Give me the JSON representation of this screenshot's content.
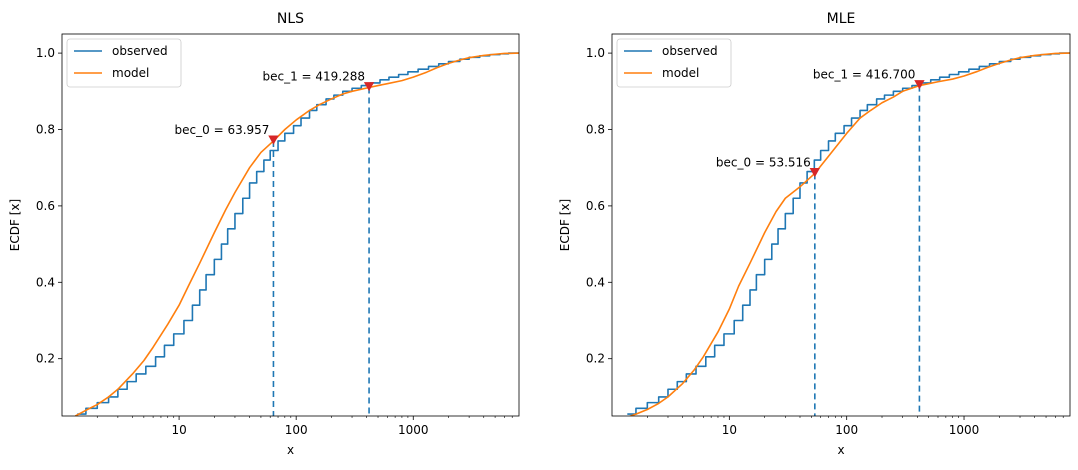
{
  "chart_data": [
    {
      "type": "line",
      "title": "NLS",
      "xlabel": "x",
      "ylabel": "ECDF [x]",
      "xscale": "log",
      "xlim": [
        1.0,
        8000
      ],
      "ylim": [
        0.05,
        1.05
      ],
      "xticks": [
        {
          "value": 10,
          "label": "10"
        },
        {
          "value": 100,
          "label": "100"
        },
        {
          "value": 1000,
          "label": "1000"
        }
      ],
      "yticks": [
        {
          "value": 0.2,
          "label": "0.2"
        },
        {
          "value": 0.4,
          "label": "0.4"
        },
        {
          "value": 0.6,
          "label": "0.6"
        },
        {
          "value": 0.8,
          "label": "0.8"
        },
        {
          "value": 1.0,
          "label": "1.0"
        }
      ],
      "legend": {
        "position": "top-left",
        "entries": [
          "observed",
          "model"
        ]
      },
      "series": [
        {
          "name": "observed",
          "kind": "step",
          "color": "#1f77b4",
          "x": [
            1.35,
            1.6,
            2.0,
            2.5,
            3.0,
            3.6,
            4.3,
            5.2,
            6.3,
            7.5,
            9.0,
            11,
            13,
            15,
            17,
            20,
            23,
            26,
            30,
            35,
            40,
            46,
            53,
            60,
            70,
            80,
            95,
            110,
            130,
            150,
            180,
            210,
            250,
            300,
            360,
            430,
            520,
            620,
            750,
            900,
            1100,
            1350,
            1650,
            2000,
            2500,
            3000,
            3700,
            4500,
            5500,
            6500,
            8000
          ],
          "y": [
            0.055,
            0.07,
            0.085,
            0.1,
            0.12,
            0.14,
            0.16,
            0.18,
            0.205,
            0.235,
            0.265,
            0.3,
            0.34,
            0.38,
            0.42,
            0.46,
            0.5,
            0.54,
            0.58,
            0.62,
            0.66,
            0.69,
            0.72,
            0.745,
            0.77,
            0.79,
            0.81,
            0.83,
            0.85,
            0.865,
            0.88,
            0.89,
            0.9,
            0.908,
            0.915,
            0.922,
            0.93,
            0.937,
            0.944,
            0.951,
            0.958,
            0.965,
            0.972,
            0.978,
            0.984,
            0.989,
            0.993,
            0.996,
            0.998,
            1.0,
            1.0
          ]
        },
        {
          "name": "model",
          "kind": "line",
          "color": "#ff7f0e",
          "x": [
            1.3,
            1.6,
            2.0,
            2.5,
            3.0,
            4.0,
            5.0,
            6.0,
            8.0,
            10,
            12,
            15,
            20,
            25,
            30,
            40,
            50,
            64,
            80,
            100,
            130,
            160,
            200,
            250,
            300,
            419,
            500,
            600,
            800,
            1000,
            1300,
            1600,
            2000,
            2500,
            3000,
            4000,
            5000,
            6000,
            8000
          ],
          "y": [
            0.05,
            0.065,
            0.08,
            0.1,
            0.12,
            0.16,
            0.195,
            0.23,
            0.29,
            0.34,
            0.39,
            0.45,
            0.53,
            0.59,
            0.635,
            0.7,
            0.74,
            0.77,
            0.8,
            0.825,
            0.85,
            0.866,
            0.88,
            0.893,
            0.9,
            0.91,
            0.915,
            0.92,
            0.928,
            0.937,
            0.95,
            0.962,
            0.973,
            0.982,
            0.988,
            0.994,
            0.997,
            0.999,
            1.0
          ]
        }
      ],
      "markers": [
        {
          "name": "bec_0",
          "label": "bec_0 = 63.957",
          "x": 63.957,
          "y": 0.77
        },
        {
          "name": "bec_1",
          "label": "bec_1 = 419.288",
          "x": 419.288,
          "y": 0.91
        }
      ],
      "colors": {
        "observed": "#1f77b4",
        "model": "#ff7f0e",
        "vline": "#1f77b4",
        "marker": "#d62728"
      }
    },
    {
      "type": "line",
      "title": "MLE",
      "xlabel": "x",
      "ylabel": "ECDF [x]",
      "xscale": "log",
      "xlim": [
        1.0,
        8000
      ],
      "ylim": [
        0.05,
        1.05
      ],
      "xticks": [
        {
          "value": 10,
          "label": "10"
        },
        {
          "value": 100,
          "label": "100"
        },
        {
          "value": 1000,
          "label": "1000"
        }
      ],
      "yticks": [
        {
          "value": 0.2,
          "label": "0.2"
        },
        {
          "value": 0.4,
          "label": "0.4"
        },
        {
          "value": 0.6,
          "label": "0.6"
        },
        {
          "value": 0.8,
          "label": "0.8"
        },
        {
          "value": 1.0,
          "label": "1.0"
        }
      ],
      "legend": {
        "position": "top-left",
        "entries": [
          "observed",
          "model"
        ]
      },
      "series": [
        {
          "name": "observed",
          "kind": "step",
          "color": "#1f77b4",
          "x": [
            1.35,
            1.6,
            2.0,
            2.5,
            3.0,
            3.6,
            4.3,
            5.2,
            6.3,
            7.5,
            9.0,
            11,
            13,
            15,
            17,
            20,
            23,
            26,
            30,
            35,
            40,
            46,
            53,
            60,
            70,
            80,
            95,
            110,
            130,
            150,
            180,
            210,
            250,
            300,
            360,
            430,
            520,
            620,
            750,
            900,
            1100,
            1350,
            1650,
            2000,
            2500,
            3000,
            3700,
            4500,
            5500,
            6500,
            8000
          ],
          "y": [
            0.055,
            0.07,
            0.085,
            0.1,
            0.12,
            0.14,
            0.16,
            0.18,
            0.205,
            0.235,
            0.265,
            0.3,
            0.34,
            0.38,
            0.42,
            0.46,
            0.5,
            0.54,
            0.58,
            0.62,
            0.66,
            0.69,
            0.72,
            0.745,
            0.77,
            0.79,
            0.81,
            0.83,
            0.85,
            0.865,
            0.88,
            0.89,
            0.9,
            0.908,
            0.915,
            0.922,
            0.93,
            0.937,
            0.944,
            0.951,
            0.958,
            0.965,
            0.972,
            0.978,
            0.984,
            0.989,
            0.993,
            0.996,
            0.998,
            1.0,
            1.0
          ]
        },
        {
          "name": "model",
          "kind": "line",
          "color": "#ff7f0e",
          "x": [
            1.3,
            1.6,
            2.0,
            2.5,
            3.0,
            4.0,
            5.0,
            6.0,
            8.0,
            10,
            12,
            15,
            20,
            25,
            30,
            40,
            53.5,
            70,
            100,
            130,
            160,
            200,
            250,
            300,
            416.7,
            500,
            600,
            800,
            1000,
            1300,
            1600,
            2000,
            2500,
            3000,
            4000,
            5000,
            6000,
            8000
          ],
          "y": [
            0.045,
            0.055,
            0.067,
            0.083,
            0.1,
            0.135,
            0.17,
            0.205,
            0.27,
            0.33,
            0.39,
            0.45,
            0.53,
            0.585,
            0.62,
            0.65,
            0.685,
            0.73,
            0.79,
            0.83,
            0.85,
            0.87,
            0.885,
            0.9,
            0.915,
            0.92,
            0.925,
            0.932,
            0.94,
            0.952,
            0.963,
            0.973,
            0.982,
            0.988,
            0.994,
            0.997,
            0.999,
            1.0
          ]
        }
      ],
      "markers": [
        {
          "name": "bec_0",
          "label": "bec_0 = 53.516",
          "x": 53.516,
          "y": 0.685
        },
        {
          "name": "bec_1",
          "label": "bec_1 = 416.700",
          "x": 416.7,
          "y": 0.915
        }
      ],
      "colors": {
        "observed": "#1f77b4",
        "model": "#ff7f0e",
        "vline": "#1f77b4",
        "marker": "#d62728"
      }
    }
  ]
}
